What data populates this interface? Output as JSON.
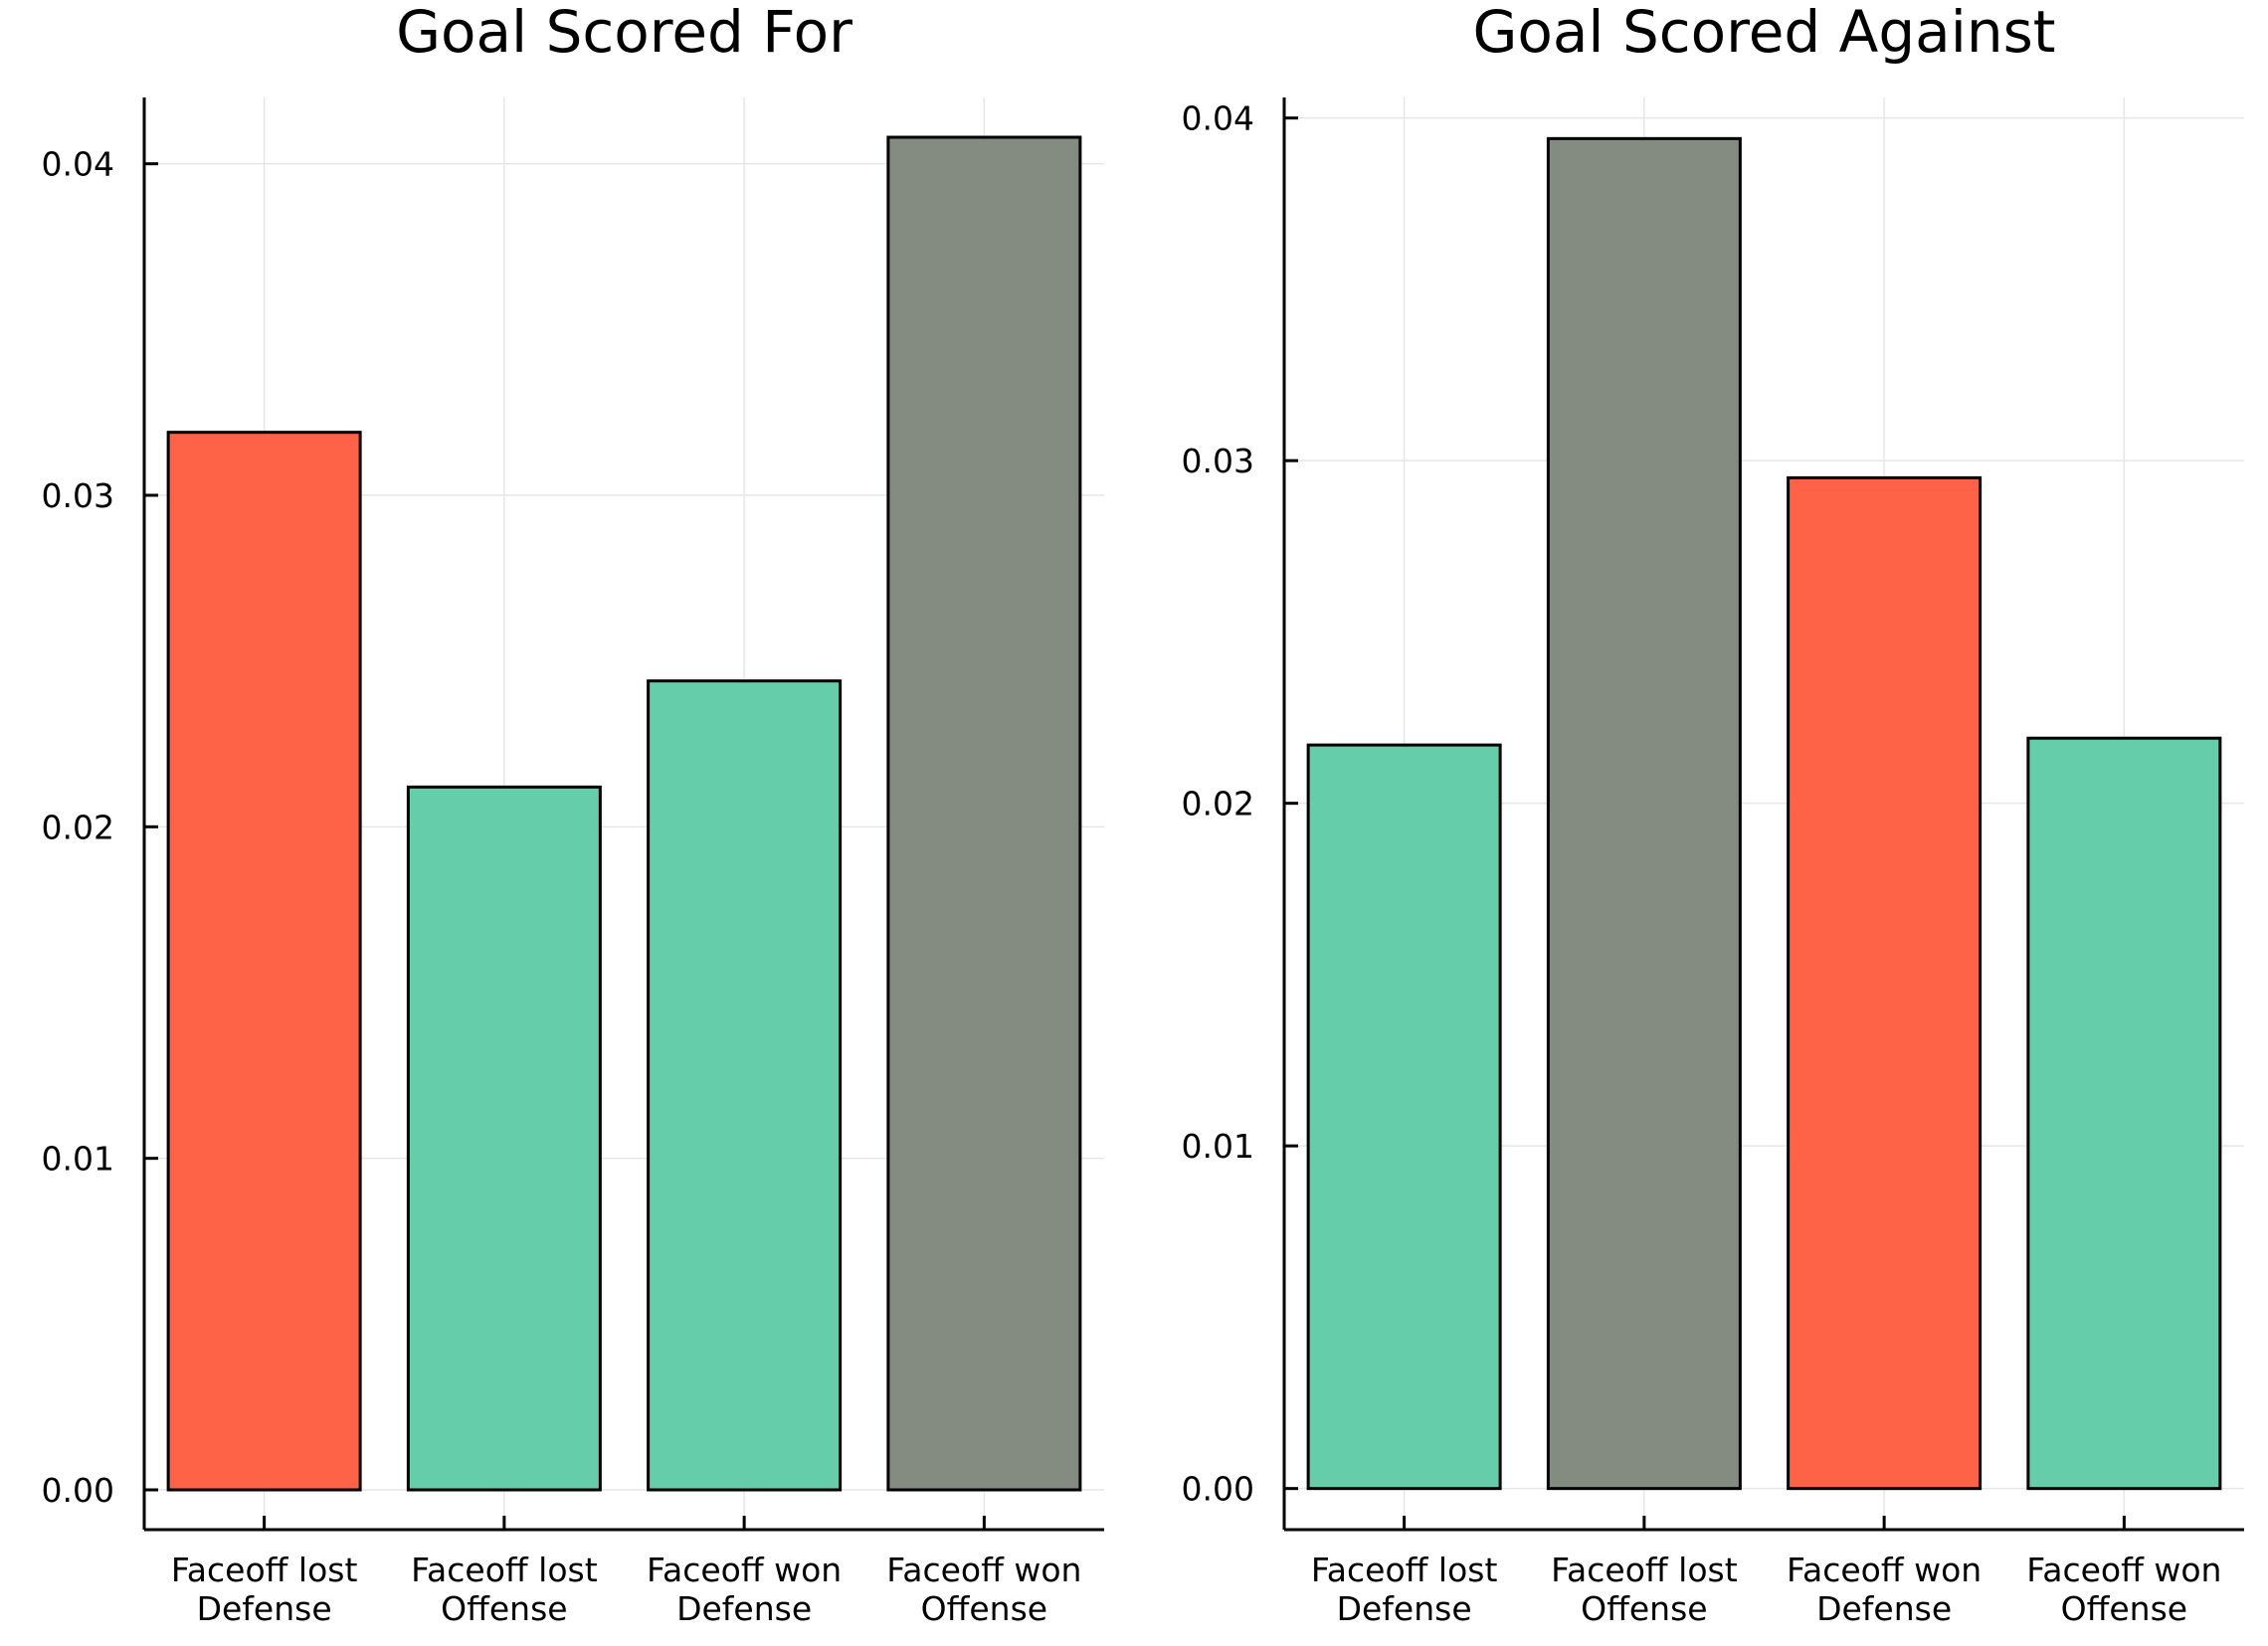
{
  "chart_data": [
    {
      "type": "bar",
      "title": "Goal Scored For",
      "xlabel": "",
      "ylabel": "",
      "categories": [
        [
          "Faceoff lost",
          "Defense"
        ],
        [
          "Faceoff lost",
          "Offense"
        ],
        [
          "Faceoff won",
          "Defense"
        ],
        [
          "Faceoff won",
          "Offense"
        ]
      ],
      "values": [
        0.0319,
        0.0212,
        0.0244,
        0.0408
      ],
      "bar_colors": [
        "#ff6347",
        "#66cdaa",
        "#66cdaa",
        "#848b80"
      ],
      "ylim": [
        -0.0012,
        0.042
      ],
      "yticks": [
        0.0,
        0.01,
        0.02,
        0.03,
        0.04
      ],
      "ytick_labels": [
        "0.00",
        "0.01",
        "0.02",
        "0.03",
        "0.04"
      ],
      "grid": true,
      "legend": "none"
    },
    {
      "type": "bar",
      "title": "Goal Scored Against",
      "xlabel": "",
      "ylabel": "",
      "categories": [
        [
          "Faceoff lost",
          "Defense"
        ],
        [
          "Faceoff lost",
          "Offense"
        ],
        [
          "Faceoff won",
          "Defense"
        ],
        [
          "Faceoff won",
          "Offense"
        ]
      ],
      "values": [
        0.0217,
        0.0394,
        0.0295,
        0.0219
      ],
      "bar_colors": [
        "#66cdaa",
        "#848b80",
        "#ff6347",
        "#66cdaa"
      ],
      "ylim": [
        -0.0012,
        0.0406
      ],
      "yticks": [
        0.0,
        0.01,
        0.02,
        0.03,
        0.04
      ],
      "ytick_labels": [
        "0.00",
        "0.01",
        "0.02",
        "0.03",
        "0.04"
      ],
      "grid": true,
      "legend": "none"
    }
  ]
}
